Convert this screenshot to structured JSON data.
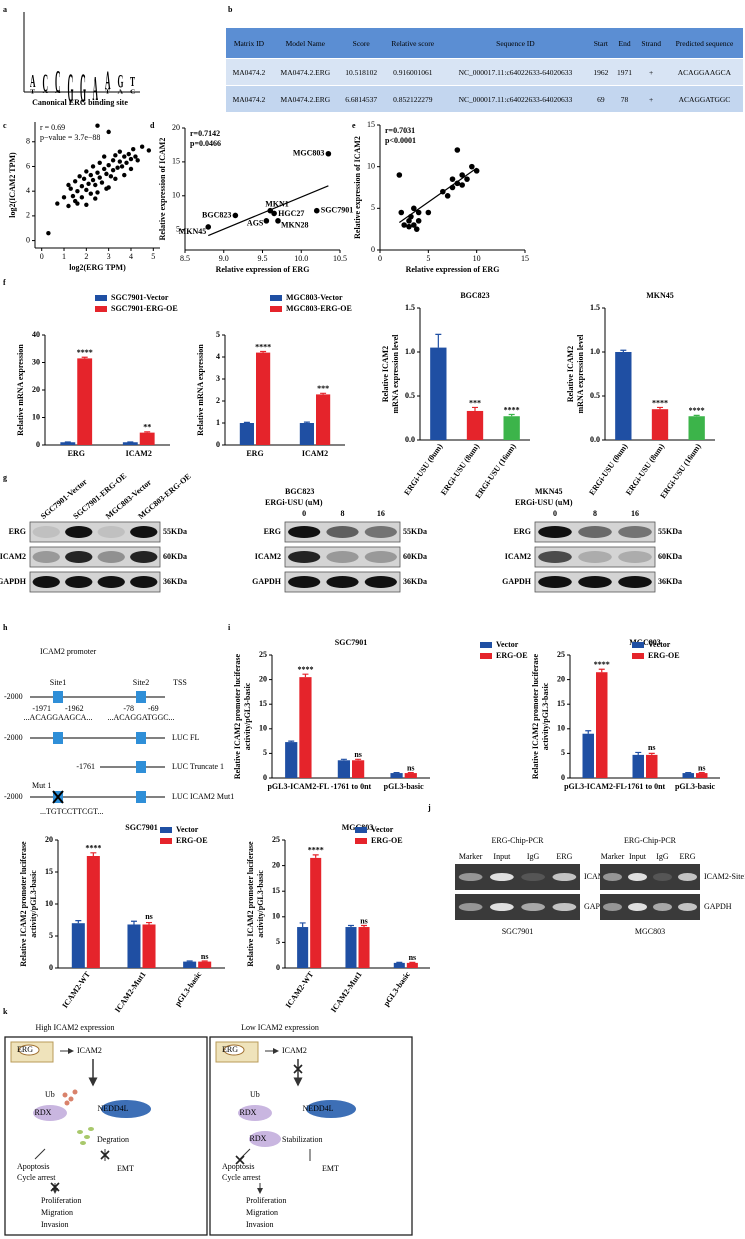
{
  "panel_labels": [
    "a",
    "b",
    "c",
    "d",
    "e",
    "f",
    "g",
    "h",
    "i",
    "j",
    "k"
  ],
  "logo": {
    "positions": [
      [
        "A",
        "T"
      ],
      [
        "C",
        "A"
      ],
      [
        "C",
        "A"
      ],
      [
        "G"
      ],
      [
        "G"
      ],
      [
        "A"
      ],
      [
        "A",
        "T"
      ],
      [
        "G",
        "A"
      ],
      [
        "T",
        "C"
      ]
    ],
    "caption": "Canonical ERG binding site"
  },
  "table": {
    "header": [
      "Matrix ID",
      "Model Name",
      "Score",
      "Relative score",
      "Sequence ID",
      "Start",
      "End",
      "Strand",
      "Predicted sequence"
    ],
    "rows": [
      [
        "MA0474.2",
        "MA0474.2.ERG",
        "10.518102",
        "0.916001061",
        "NC_000017.11:c64022633-64020633",
        "1962",
        "1971",
        "+",
        "ACAGGAAGCA"
      ],
      [
        "MA0474.2",
        "MA0474.2.ERG",
        "6.6814537",
        "0.852122279",
        "NC_000017.11:c64022633-64020633",
        "69",
        "78",
        "+",
        "ACAGGATGGC"
      ]
    ]
  },
  "chart_data": [
    {
      "type": "scatter",
      "color": "#000000",
      "annotations": [
        "r = 0.69",
        "p−value = 3.7e−88"
      ],
      "x_label": "log2(ERG TPM)",
      "y_label": "log2(ICAM2 TPM)",
      "x": [
        0.3,
        0.7,
        1.0,
        1.2,
        1.3,
        1.4,
        1.5,
        1.5,
        1.6,
        1.7,
        1.8,
        1.8,
        1.9,
        2.0,
        2.0,
        2.1,
        2.2,
        2.2,
        2.3,
        2.3,
        2.4,
        2.5,
        2.5,
        2.6,
        2.6,
        2.7,
        2.8,
        2.8,
        2.9,
        3.0,
        3.0,
        3.1,
        3.2,
        3.2,
        3.3,
        3.4,
        3.5,
        3.5,
        3.6,
        3.7,
        3.8,
        3.9,
        4.0,
        4.1,
        4.2,
        4.3,
        4.5,
        4.8,
        2.5,
        3.0,
        1.6,
        2.0,
        2.4,
        2.9,
        3.3,
        3.7,
        1.2,
        4.0
      ],
      "values": [
        0.6,
        3.0,
        3.5,
        2.8,
        4.2,
        3.6,
        4.8,
        3.2,
        4.0,
        5.2,
        4.4,
        3.5,
        5.0,
        4.1,
        5.6,
        4.6,
        3.8,
        5.3,
        4.9,
        6.0,
        4.5,
        5.5,
        9.3,
        5.1,
        6.3,
        4.7,
        5.8,
        6.8,
        5.4,
        6.1,
        8.8,
        5.2,
        6.5,
        5.7,
        6.9,
        5.9,
        6.4,
        7.2,
        6.0,
        6.8,
        6.3,
        7.0,
        6.6,
        7.4,
        6.8,
        6.5,
        7.6,
        7.3,
        3.9,
        4.3,
        3.0,
        2.9,
        3.4,
        4.2,
        5.0,
        5.3,
        4.5,
        5.8
      ],
      "xlim": [
        -0.3,
        5.3
      ],
      "xticks": [
        0,
        1,
        2,
        3,
        4,
        5
      ],
      "ylim": [
        -0.6,
        9.6
      ],
      "yticks": [
        0,
        2,
        4,
        6,
        8
      ]
    },
    {
      "type": "scatter",
      "color": "#000000",
      "trend_line": true,
      "annotations": [
        "r=0.7142",
        "p=0.0466"
      ],
      "x_label": "Relative expression of ERG",
      "y_label": "Relative expression of ICAM2",
      "x": [
        10.35,
        9.15,
        9.6,
        9.65,
        10.2,
        9.55,
        9.7,
        8.8
      ],
      "values": [
        16.2,
        7.1,
        7.8,
        7.4,
        7.8,
        6.3,
        6.3,
        5.4
      ],
      "point_labels": [
        "MGC803",
        "BGC823",
        "MKN1",
        "HGC27",
        "SGC7901",
        "AGS",
        "MKN28",
        "MKN45"
      ],
      "xlim": [
        8.5,
        10.5
      ],
      "xticks": [
        8.5,
        {
          "value": 9,
          "label": "9.0"
        },
        9.5,
        {
          "value": 10,
          "label": "10.0"
        },
        10.5
      ],
      "ylim": [
        2,
        20
      ],
      "yticks": [
        5,
        10,
        15,
        20
      ]
    },
    {
      "type": "scatter",
      "color": "#000000",
      "trend_line": true,
      "annotations": [
        "r=0.7031",
        "p<0.0001"
      ],
      "x_label": "Relative expression of ERG",
      "y_label": "Relative expression of ICAM2",
      "x": [
        2,
        2.2,
        2.5,
        3,
        3,
        3.2,
        3.5,
        3.5,
        4,
        4,
        5,
        6.5,
        7,
        7.5,
        7.5,
        8,
        8,
        8.5,
        8.5,
        9,
        9.5,
        10,
        3.8
      ],
      "values": [
        9,
        4.5,
        3,
        3.5,
        2.8,
        4,
        3,
        5,
        4.5,
        3.5,
        4.5,
        7,
        6.5,
        7.5,
        8.5,
        8,
        12,
        9,
        7.8,
        8.5,
        10,
        9.5,
        2.5
      ],
      "xlim": [
        0,
        15
      ],
      "xticks": [
        0,
        5,
        10,
        15
      ],
      "ylim": [
        0,
        15
      ],
      "yticks": [
        0,
        5,
        10,
        15
      ]
    },
    {
      "type": "bar",
      "y_label": [
        "Relative mRNA expression"
      ],
      "categories": [
        "ERG",
        "ICAM2"
      ],
      "legend": "top",
      "series": [
        {
          "name": "SGC7901-Vector",
          "color": "#1f4fa3",
          "values": [
            1,
            1
          ],
          "errors": [
            0.1,
            0.1
          ]
        },
        {
          "name": "SGC7901-ERG-OE",
          "color": "#e5242b",
          "values": [
            31.5,
            4.5
          ],
          "errors": [
            0.4,
            0.3
          ]
        }
      ],
      "significance": [
        "****",
        "**"
      ],
      "ylim": [
        0,
        40
      ],
      "yticks": [
        0,
        10,
        20,
        30,
        40
      ]
    },
    {
      "type": "bar",
      "y_label": [
        "Relative mRNA expression"
      ],
      "categories": [
        "ERG",
        "ICAM2"
      ],
      "legend": "top",
      "series": [
        {
          "name": "MGC803-Vector",
          "color": "#1f4fa3",
          "values": [
            1,
            1
          ],
          "errors": [
            0.03,
            0.04
          ]
        },
        {
          "name": "MGC803-ERG-OE",
          "color": "#e5242b",
          "values": [
            4.2,
            2.3
          ],
          "errors": [
            0.05,
            0.05
          ]
        }
      ],
      "significance": [
        "****",
        "***"
      ],
      "ylim": [
        0,
        5
      ],
      "yticks": [
        0,
        1,
        2,
        3,
        4,
        5
      ]
    },
    {
      "type": "bar",
      "title": "BGC823",
      "y_label": [
        "Relative ICAM2",
        "mRNA expression level"
      ],
      "categories": [
        "ERGi-USU (0um)",
        "ERGi-USU (8um)",
        "ERGi-USU (16um)"
      ],
      "values": [
        1.05,
        0.33,
        0.27
      ],
      "errors": [
        0.15,
        0.04,
        0.02
      ],
      "colors": [
        "#1f4fa3",
        "#e5242b",
        "#3cb44a"
      ],
      "significance": [
        null,
        "***",
        "****"
      ],
      "ylim": [
        0,
        1.5
      ],
      "yticks": [
        {
          "value": 0,
          "label": "0.0"
        },
        0.5,
        {
          "value": 1,
          "label": "1.0"
        },
        1.5
      ]
    },
    {
      "type": "bar",
      "title": "MKN45",
      "y_label": [
        "Relative ICAM2",
        "mRNA expression level"
      ],
      "categories": [
        "ERGi-USU (0um)",
        "ERGi-USU (8um)",
        "ERGi-USU (16um)"
      ],
      "values": [
        1.0,
        0.35,
        0.27
      ],
      "errors": [
        0.02,
        0.02,
        0.01
      ],
      "colors": [
        "#1f4fa3",
        "#e5242b",
        "#3cb44a"
      ],
      "significance": [
        null,
        "****",
        "****"
      ],
      "ylim": [
        0,
        1.5
      ],
      "yticks": [
        {
          "value": 0,
          "label": "0.0"
        },
        0.5,
        {
          "value": 1,
          "label": "1.0"
        },
        1.5
      ]
    },
    {
      "type": "bar",
      "title": "SGC7901",
      "y_label": [
        "Relative ICAM2 promoter luciferase",
        "activity/pGL3-basic"
      ],
      "categories": [
        "pGL3-ICAM2-FL",
        "-1761 to 0nt",
        "pGL3-basic"
      ],
      "legend": "top-right",
      "series": [
        {
          "name": "Vector",
          "color": "#1f4fa3",
          "values": [
            7.3,
            3.6,
            1
          ],
          "errors": [
            0.2,
            0.2,
            0.1
          ]
        },
        {
          "name": "ERG-OE",
          "color": "#e5242b",
          "values": [
            20.5,
            3.6,
            1
          ],
          "errors": [
            0.6,
            0.2,
            0.1
          ]
        }
      ],
      "significance": [
        "****",
        "ns",
        "ns"
      ],
      "ylim": [
        0,
        25
      ],
      "yticks": [
        0,
        5,
        10,
        15,
        20,
        25
      ]
    },
    {
      "type": "bar",
      "title": "MGC803",
      "y_label": [
        "Relative ICAM2 promoter luciferase",
        "activity/pGL3-basic"
      ],
      "categories": [
        "pGL3-ICAM2-FL",
        "-1761 to 0nt",
        "pGL3-basic"
      ],
      "legend": "top-right",
      "series": [
        {
          "name": "Vector",
          "color": "#1f4fa3",
          "values": [
            9,
            4.7,
            1
          ],
          "errors": [
            0.6,
            0.5,
            0.1
          ]
        },
        {
          "name": "ERG-OE",
          "color": "#e5242b",
          "values": [
            21.5,
            4.7,
            1
          ],
          "errors": [
            0.6,
            0.3,
            0.1
          ]
        }
      ],
      "significance": [
        "****",
        "ns",
        "ns"
      ],
      "ylim": [
        0,
        25
      ],
      "yticks": [
        0,
        5,
        10,
        15,
        20,
        25
      ]
    },
    {
      "type": "bar",
      "title": "SGC7901",
      "y_label": [
        "Relative ICAM2 promoter luciferase",
        "activity/pGL3-basic"
      ],
      "categories": [
        "ICAM2-WT",
        "ICAM2-Mut1",
        "pGL3-basic"
      ],
      "legend": "top-right",
      "series": [
        {
          "name": "Vector",
          "color": "#1f4fa3",
          "values": [
            7,
            6.8,
            1
          ],
          "errors": [
            0.4,
            0.5,
            0.1
          ]
        },
        {
          "name": "ERG-OE",
          "color": "#e5242b",
          "values": [
            17.5,
            6.8,
            1
          ],
          "errors": [
            0.5,
            0.3,
            0.1
          ]
        }
      ],
      "significance": [
        "****",
        "ns",
        "ns"
      ],
      "ylim": [
        0,
        20
      ],
      "yticks": [
        0,
        5,
        10,
        15,
        20
      ]
    },
    {
      "type": "bar",
      "title": "MGC803",
      "y_label": [
        "Relative ICAM2 promoter luciferase",
        "activity/pGL3-basic"
      ],
      "categories": [
        "ICAM2-WT",
        "ICAM2-Mut1",
        "pGL3-basic"
      ],
      "legend": "top-right",
      "series": [
        {
          "name": "Vector",
          "color": "#1f4fa3",
          "values": [
            8,
            8,
            1
          ],
          "errors": [
            0.8,
            0.3,
            0.1
          ]
        },
        {
          "name": "ERG-OE",
          "color": "#e5242b",
          "values": [
            21.5,
            8,
            1
          ],
          "errors": [
            0.6,
            0.3,
            0.1
          ]
        }
      ],
      "significance": [
        "****",
        "ns",
        "ns"
      ],
      "ylim": [
        0,
        25
      ],
      "yticks": [
        0,
        5,
        10,
        15,
        20,
        25
      ]
    }
  ],
  "blots": [
    {
      "lanes": [
        "SGC7901-Vector",
        "SGC7901-ERG-OE",
        "MGC803-Vector",
        "MGC803-ERG-OE"
      ],
      "rows": [
        {
          "protein": "ERG",
          "size": "55KDa"
        },
        {
          "protein": "ICAM2",
          "size": "60KDa"
        },
        {
          "protein": "GAPDH",
          "size": "36KDa"
        }
      ]
    },
    {
      "cell": "BGC823",
      "treatment": "ERGi-USU (uM)",
      "lanes": [
        "0",
        "8",
        "16"
      ],
      "rows": [
        {
          "protein": "ERG",
          "size": "55KDa"
        },
        {
          "protein": "ICAM2",
          "size": "60KDa"
        },
        {
          "protein": "GAPDH",
          "size": "36KDa"
        }
      ]
    },
    {
      "cell": "MKN45",
      "treatment": "ERGi-USU (uM)",
      "lanes": [
        "0",
        "8",
        "16"
      ],
      "rows": [
        {
          "protein": "ERG",
          "size": "55KDa"
        },
        {
          "protein": "ICAM2",
          "size": "60KDa"
        },
        {
          "protein": "GAPDH",
          "size": "36KDa"
        }
      ]
    }
  ],
  "promoter": {
    "title": "ICAM2 promoter",
    "start": "-2000",
    "site1": "Site1",
    "site2": "Site2",
    "tss": "TSS",
    "site1_from": "-1971",
    "site1_to": "-1962",
    "site2_from": "-78",
    "site2_to": "-69",
    "site1_seq": "...ACAGGAAGCA...",
    "site2_seq": "...ACAGGATGGC...",
    "constructs": [
      "LUC FL",
      "LUC Truncate 1",
      "LUC ICAM2 Mut1"
    ],
    "truncate_start": "-1761",
    "mut": "Mut 1",
    "mut_seq": "...TGTCCTTCGT..."
  },
  "chip": [
    {
      "title": "ERG-Chip-PCR",
      "lanes": [
        "Marker",
        "Input",
        "IgG",
        "ERG"
      ],
      "targets": [
        "ICAM2-Site1",
        "GAPDH"
      ],
      "cell": "SGC7901"
    },
    {
      "title": "ERG-Chip-PCR",
      "lanes": [
        "Marker",
        "Input",
        "IgG",
        "ERG"
      ],
      "targets": [
        "ICAM2-Site1",
        "GAPDH"
      ],
      "cell": "MGC803"
    }
  ],
  "model": [
    {
      "title": "High ICAM2 expression",
      "erg": "ERG",
      "icam2": "ICAM2",
      "ub": "Ub",
      "rdx": "RDX",
      "nedd4l": "NEDD4L",
      "fate": "Degration",
      "apoptosis": "Apoptosis",
      "cycle_arrest": "Cycle arrest",
      "emt": "EMT",
      "proliferation": "Proliferation",
      "migration": "Migration",
      "invasion": "Invasion"
    },
    {
      "title": "Low ICAM2 expression",
      "erg": "ERG",
      "icam2": "ICAM2",
      "ub": "Ub",
      "rdx": "RDX",
      "nedd4l": "NEDD4L",
      "rdx_complex": "RDX",
      "fate": "Stabilization",
      "apoptosis": "Apoptosis",
      "cycle_arrest": "Cycle arrest",
      "emt": "EMT",
      "proliferation": "Proliferation",
      "migration": "Migration",
      "invasion": "Invasion"
    }
  ]
}
